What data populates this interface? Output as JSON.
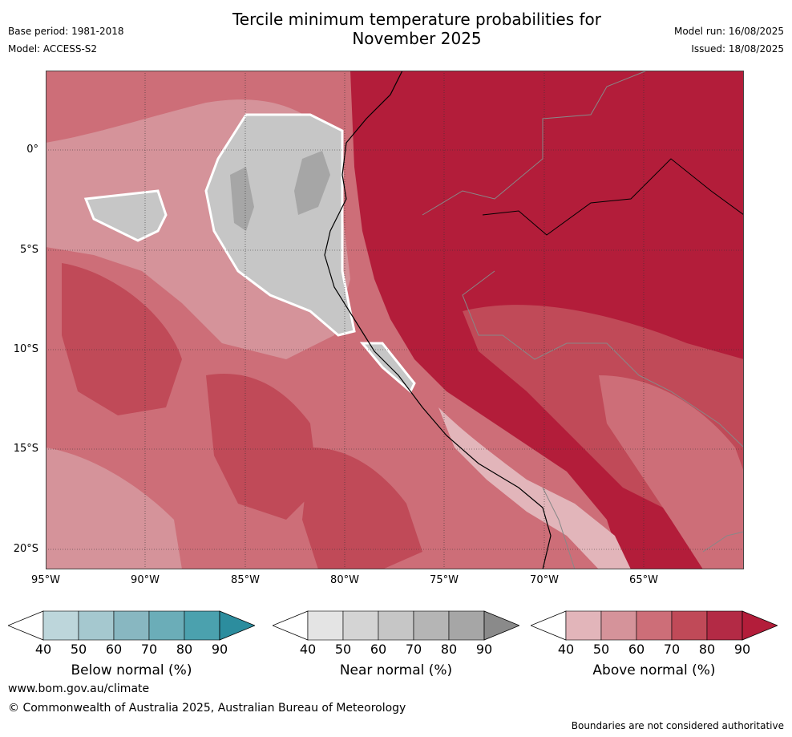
{
  "header": {
    "title_line1": "Tercile minimum temperature probabilities for",
    "title_line2": "November 2025",
    "base_period": "Base period: 1981-2018",
    "model": "Model: ACCESS-S2",
    "model_run": "Model run: 16/08/2025",
    "issued": "Issued: 18/08/2025"
  },
  "map": {
    "lat_labels": [
      "0°",
      "5°S",
      "10°S",
      "15°S",
      "20°S"
    ],
    "lon_labels": [
      "95°W",
      "90°W",
      "85°W",
      "80°W",
      "75°W",
      "70°W",
      "65°W"
    ],
    "dominant_category": "Above normal",
    "region_colors": {
      "ocean_base": "#cd6e78",
      "above_90": "#b31d3a",
      "above_80": "#c04a58",
      "above_70": "#cd6e78",
      "above_60": "#d5939a",
      "above_50": "#e2b5ba",
      "near_60": "#c6c6c6",
      "near_70": "#a6a6a6",
      "near_50": "#d4d4d4"
    },
    "icons": [
      "coastline-icon",
      "country-border-icon"
    ]
  },
  "colorbars": [
    {
      "title": "Below normal (%)",
      "ticks": [
        "40",
        "50",
        "60",
        "70",
        "80",
        "90"
      ],
      "colors": [
        "#ffffff",
        "#bdd6db",
        "#a5c8cf",
        "#88b7c1",
        "#6badb8",
        "#4ba1ae",
        "#2c8d9e"
      ]
    },
    {
      "title": "Near normal (%)",
      "ticks": [
        "40",
        "50",
        "60",
        "70",
        "80",
        "90"
      ],
      "colors": [
        "#ffffff",
        "#e4e4e4",
        "#d4d4d4",
        "#c6c6c6",
        "#b5b5b5",
        "#a6a6a6",
        "#8a8a8a"
      ]
    },
    {
      "title": "Above normal (%)",
      "ticks": [
        "40",
        "50",
        "60",
        "70",
        "80",
        "90"
      ],
      "colors": [
        "#ffffff",
        "#e2b5ba",
        "#d5939a",
        "#cd6e78",
        "#c04a58",
        "#b32a45",
        "#b31d3a"
      ]
    }
  ],
  "footer": {
    "url": "www.bom.gov.au/climate",
    "copyright": "© Commonwealth of Australia 2025, Australian Bureau of Meteorology",
    "disclaimer": "Boundaries are not considered authoritative"
  }
}
